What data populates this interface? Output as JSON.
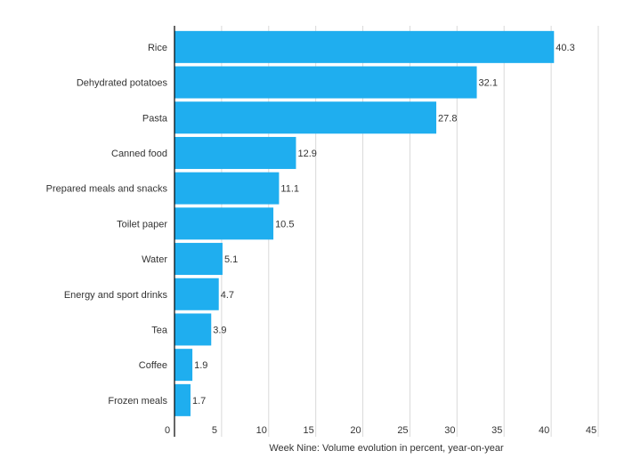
{
  "chart_data": {
    "type": "bar",
    "orientation": "horizontal",
    "categories": [
      "Rice",
      "Dehydrated potatoes",
      "Pasta",
      "Canned food",
      "Prepared meals and snacks",
      "Toilet paper",
      "Water",
      "Energy and sport drinks",
      "Tea",
      "Coffee",
      "Frozen meals"
    ],
    "values": [
      40.3,
      32.1,
      27.8,
      12.9,
      11.1,
      10.5,
      5.1,
      4.7,
      3.9,
      1.9,
      1.7
    ],
    "value_labels": [
      "40.3",
      "32.1",
      "27.8",
      "12.9",
      "11.1",
      "10.5",
      "5.1",
      "4.7",
      "3.9",
      "1.9",
      "1.7"
    ],
    "xlabel": "Week Nine: Volume evolution in percent, year-on-year",
    "ylabel": "",
    "title": "",
    "xlim": [
      0,
      45
    ],
    "xticks": [
      0,
      5,
      10,
      15,
      20,
      25,
      30,
      35,
      40,
      45
    ],
    "xtick_labels": [
      "0",
      "5",
      "10",
      "15",
      "20",
      "25",
      "30",
      "35",
      "40",
      "45"
    ],
    "grid": true,
    "legend": "none",
    "colors": {
      "bar": "#1faeef",
      "grid": "#d9d9d9",
      "axis": "#000000",
      "text": "#333333"
    }
  }
}
